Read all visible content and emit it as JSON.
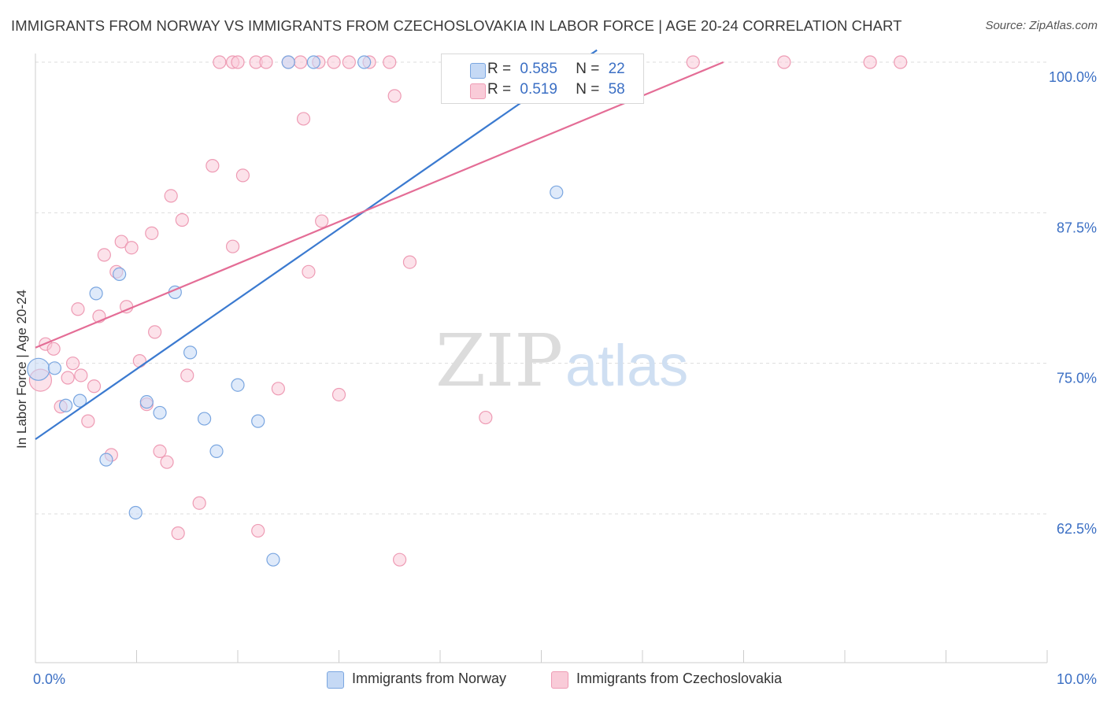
{
  "header": {
    "title": "IMMIGRANTS FROM NORWAY VS IMMIGRANTS FROM CZECHOSLOVAKIA IN LABOR FORCE | AGE 20-24 CORRELATION CHART",
    "source": "Source: ZipAtlas.com"
  },
  "watermark": {
    "zip": "ZIP",
    "atlas": "atlas"
  },
  "legend": {
    "norway": {
      "r_label": "R =",
      "r_value": "0.585",
      "n_label": "N =",
      "n_value": "22"
    },
    "czech": {
      "r_label": "R =",
      "r_value": "0.519",
      "n_label": "N =",
      "n_value": "58"
    }
  },
  "colors": {
    "norway_fill": "#c5d9f5",
    "norway_stroke": "#7aa6e0",
    "norway_line": "#3b7ad0",
    "czech_fill": "#f9cbd8",
    "czech_stroke": "#ee9bb4",
    "czech_line": "#e46d96",
    "axis_text": "#3b6fc4",
    "grid": "#dddddd"
  },
  "chart_data": {
    "type": "scatter",
    "title": "IMMIGRANTS FROM NORWAY VS IMMIGRANTS FROM CZECHOSLOVAKIA IN LABOR FORCE | AGE 20-24 CORRELATION CHART",
    "xlabel": "",
    "ylabel": "In Labor Force | Age 20-24",
    "xlim": [
      0,
      10
    ],
    "ylim": [
      50,
      101.5
    ],
    "x_tick_labels": [
      "0.0%",
      "10.0%"
    ],
    "y_ticks": [
      62.5,
      75.0,
      87.5,
      100.0
    ],
    "y_tick_labels": [
      "62.5%",
      "75.0%",
      "87.5%",
      "100.0%"
    ],
    "grid": true,
    "legend_position": "top-center",
    "series": [
      {
        "name": "Immigrants from Norway",
        "points": [
          [
            0.03,
            74.5
          ],
          [
            0.19,
            74.6
          ],
          [
            0.3,
            71.5
          ],
          [
            0.44,
            71.9
          ],
          [
            0.6,
            80.8
          ],
          [
            0.7,
            67.0
          ],
          [
            0.83,
            82.4
          ],
          [
            0.99,
            62.6
          ],
          [
            1.1,
            71.8
          ],
          [
            1.23,
            70.9
          ],
          [
            1.38,
            80.9
          ],
          [
            1.53,
            75.9
          ],
          [
            1.67,
            70.4
          ],
          [
            1.79,
            67.7
          ],
          [
            2.0,
            73.2
          ],
          [
            2.2,
            70.2
          ],
          [
            2.35,
            58.7
          ],
          [
            2.5,
            100.0
          ],
          [
            2.75,
            100.0
          ],
          [
            3.25,
            100.0
          ],
          [
            5.1,
            100.0
          ],
          [
            5.15,
            89.2
          ]
        ],
        "trend": {
          "x": [
            0.0,
            5.55
          ],
          "y": [
            68.7,
            101.0
          ]
        }
      },
      {
        "name": "Immigrants from Czechoslovakia",
        "points": [
          [
            0.05,
            73.6
          ],
          [
            0.1,
            76.6
          ],
          [
            0.18,
            76.2
          ],
          [
            0.25,
            71.4
          ],
          [
            0.32,
            73.8
          ],
          [
            0.37,
            75.0
          ],
          [
            0.42,
            79.5
          ],
          [
            0.45,
            74.0
          ],
          [
            0.52,
            70.2
          ],
          [
            0.58,
            73.1
          ],
          [
            0.63,
            78.9
          ],
          [
            0.68,
            84.0
          ],
          [
            0.75,
            67.4
          ],
          [
            0.8,
            82.6
          ],
          [
            0.85,
            85.1
          ],
          [
            0.9,
            79.7
          ],
          [
            0.95,
            84.6
          ],
          [
            1.03,
            75.2
          ],
          [
            1.1,
            71.6
          ],
          [
            1.15,
            85.8
          ],
          [
            1.18,
            77.6
          ],
          [
            1.23,
            67.7
          ],
          [
            1.3,
            66.8
          ],
          [
            1.34,
            88.9
          ],
          [
            1.41,
            60.9
          ],
          [
            1.45,
            86.9
          ],
          [
            1.5,
            74.0
          ],
          [
            1.62,
            63.4
          ],
          [
            1.75,
            91.4
          ],
          [
            1.82,
            100.0
          ],
          [
            1.95,
            100.0
          ],
          [
            1.95,
            84.7
          ],
          [
            2.0,
            100.0
          ],
          [
            2.05,
            90.6
          ],
          [
            2.18,
            100.0
          ],
          [
            2.2,
            61.1
          ],
          [
            2.28,
            100.0
          ],
          [
            2.4,
            72.9
          ],
          [
            2.5,
            100.0
          ],
          [
            2.62,
            100.0
          ],
          [
            2.65,
            95.3
          ],
          [
            2.7,
            82.6
          ],
          [
            2.8,
            100.0
          ],
          [
            2.83,
            86.8
          ],
          [
            2.95,
            100.0
          ],
          [
            3.0,
            72.4
          ],
          [
            3.1,
            100.0
          ],
          [
            3.3,
            100.0
          ],
          [
            3.5,
            100.0
          ],
          [
            3.55,
            97.2
          ],
          [
            3.6,
            58.7
          ],
          [
            3.7,
            83.4
          ],
          [
            4.1,
            100.0
          ],
          [
            4.45,
            70.5
          ],
          [
            6.5,
            100.0
          ],
          [
            7.4,
            100.0
          ],
          [
            8.25,
            100.0
          ],
          [
            8.55,
            100.0
          ]
        ],
        "trend": {
          "x": [
            0.0,
            6.8
          ],
          "y": [
            76.3,
            100.0
          ]
        }
      }
    ]
  },
  "bottom_legend": {
    "norway": "Immigrants from Norway",
    "czech": "Immigrants from Czechoslovakia"
  }
}
